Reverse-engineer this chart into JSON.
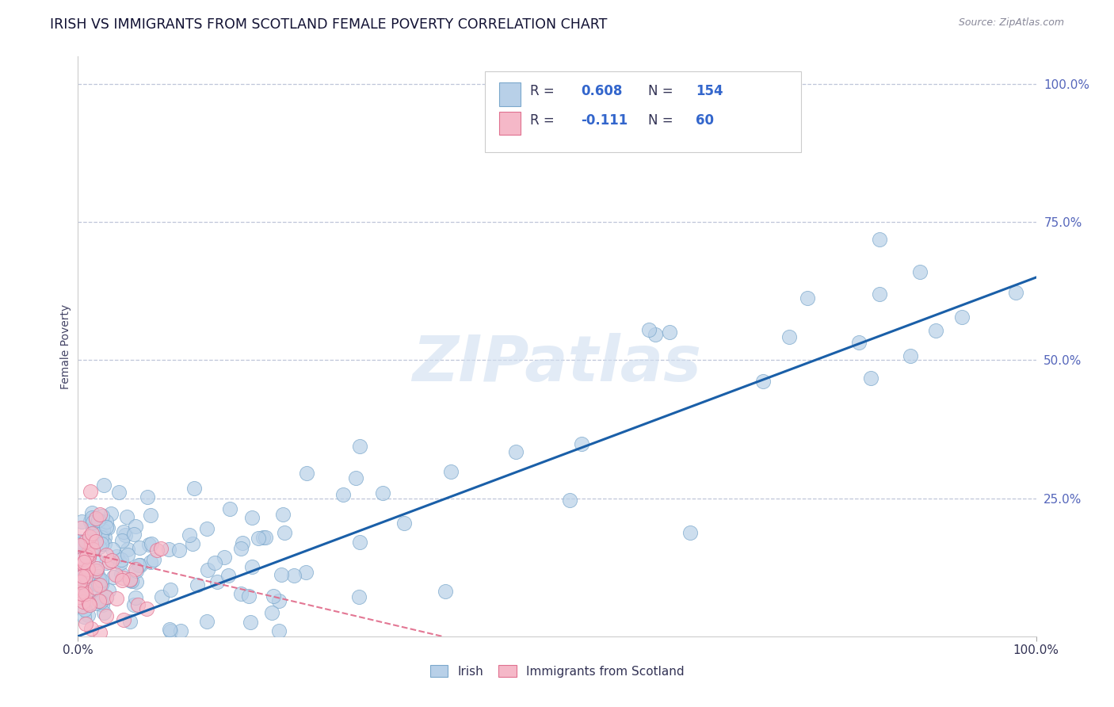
{
  "title": "IRISH VS IMMIGRANTS FROM SCOTLAND FEMALE POVERTY CORRELATION CHART",
  "source": "Source: ZipAtlas.com",
  "ylabel": "Female Poverty",
  "xlim": [
    0,
    1
  ],
  "ylim": [
    0,
    1.05
  ],
  "xtick_labels": [
    "0.0%",
    "100.0%"
  ],
  "ytick_labels": [
    "100.0%",
    "75.0%",
    "50.0%",
    "25.0%"
  ],
  "ytick_positions": [
    1.0,
    0.75,
    0.5,
    0.25
  ],
  "grid_color": "#b0b8d0",
  "background_color": "#ffffff",
  "irish_color": "#b8d0e8",
  "irish_edge_color": "#7ba8cc",
  "scotland_color": "#f5b8c8",
  "scotland_edge_color": "#e07090",
  "irish_line_color": "#1a5fa8",
  "scotland_line_color": "#e06888",
  "R_irish": "0.608",
  "N_irish": "154",
  "R_scotland": "-0.111",
  "N_scotland": "60",
  "legend_R_color": "#3366cc",
  "legend_N_color": "#3366cc",
  "legend_label_color": "#333355",
  "watermark_text": "ZIPatlas",
  "watermark_color": "#d0dff0",
  "irish_trend_x0": 0.0,
  "irish_trend_y0": 0.0,
  "irish_trend_x1": 1.0,
  "irish_trend_y1": 0.65,
  "scotland_trend_x0": 0.0,
  "scotland_trend_y0": 0.155,
  "scotland_trend_x1": 0.38,
  "scotland_trend_y1": 0.0
}
